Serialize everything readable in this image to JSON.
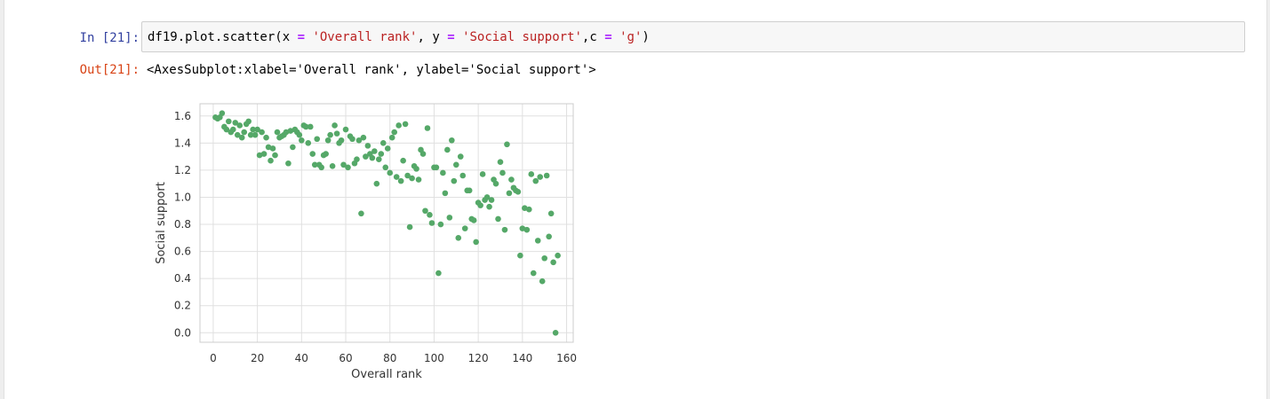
{
  "cell": {
    "in_prompt": "In [21]:",
    "out_prompt": "Out[21]:",
    "code": {
      "part1": "df19.plot.scatter(x ",
      "eq1": "=",
      "part2": " ",
      "str1": "'Overall rank'",
      "part3": ", y ",
      "eq2": "=",
      "part4": " ",
      "str2": "'Social support'",
      "part5": ",c ",
      "eq3": "=",
      "part6": " ",
      "str3": "'g'",
      "part7": ")"
    },
    "output_text": "<AxesSubplot:xlabel='Overall rank', ylabel='Social support'>"
  },
  "colors": {
    "marker": "#55a868",
    "in_prompt": "#303f9f",
    "out_prompt": "#d84315",
    "grid": "#e0e0e0",
    "axis_text": "#333333"
  },
  "chart_data": {
    "type": "scatter",
    "xlabel": "Overall rank",
    "ylabel": "Social support",
    "xlim": [
      -6,
      163
    ],
    "ylim": [
      -0.07,
      1.69
    ],
    "xticks": [
      0,
      20,
      40,
      60,
      80,
      100,
      120,
      140,
      160
    ],
    "yticks": [
      0.0,
      0.2,
      0.4,
      0.6,
      0.8,
      1.0,
      1.2,
      1.4,
      1.6
    ],
    "ytick_labels": [
      "0.0",
      "0.2",
      "0.4",
      "0.6",
      "0.8",
      "1.0",
      "1.2",
      "1.4",
      "1.6"
    ],
    "grid": true,
    "x": [
      1,
      2,
      3,
      4,
      5,
      6,
      7,
      8,
      9,
      10,
      11,
      12,
      13,
      14,
      15,
      16,
      17,
      18,
      19,
      20,
      21,
      22,
      23,
      24,
      25,
      26,
      27,
      28,
      29,
      30,
      31,
      32,
      33,
      34,
      35,
      36,
      37,
      38,
      39,
      40,
      41,
      42,
      43,
      44,
      45,
      46,
      47,
      48,
      49,
      50,
      51,
      52,
      53,
      54,
      55,
      56,
      57,
      58,
      59,
      60,
      61,
      62,
      63,
      64,
      65,
      66,
      67,
      68,
      69,
      70,
      71,
      72,
      73,
      74,
      75,
      76,
      77,
      78,
      79,
      80,
      81,
      82,
      83,
      84,
      85,
      86,
      87,
      88,
      89,
      90,
      91,
      92,
      93,
      94,
      95,
      96,
      97,
      98,
      99,
      100,
      101,
      102,
      103,
      104,
      105,
      106,
      107,
      108,
      109,
      110,
      111,
      112,
      113,
      114,
      115,
      116,
      117,
      118,
      119,
      120,
      121,
      122,
      123,
      124,
      125,
      126,
      127,
      128,
      129,
      130,
      131,
      132,
      133,
      134,
      135,
      136,
      137,
      138,
      139,
      140,
      141,
      142,
      143,
      144,
      145,
      146,
      147,
      148,
      149,
      150,
      151,
      152,
      153,
      154,
      155,
      156
    ],
    "y": [
      1.59,
      1.58,
      1.59,
      1.62,
      1.52,
      1.5,
      1.56,
      1.48,
      1.5,
      1.55,
      1.46,
      1.53,
      1.44,
      1.48,
      1.54,
      1.56,
      1.46,
      1.5,
      1.46,
      1.5,
      1.31,
      1.48,
      1.32,
      1.44,
      1.37,
      1.27,
      1.36,
      1.31,
      1.48,
      1.44,
      1.45,
      1.46,
      1.48,
      1.25,
      1.49,
      1.37,
      1.5,
      1.48,
      1.46,
      1.42,
      1.53,
      1.52,
      1.4,
      1.52,
      1.32,
      1.24,
      1.43,
      1.24,
      1.22,
      1.31,
      1.32,
      1.42,
      1.46,
      1.23,
      1.53,
      1.47,
      1.4,
      1.42,
      1.24,
      1.5,
      1.22,
      1.45,
      1.43,
      1.25,
      1.28,
      1.42,
      0.88,
      1.44,
      1.3,
      1.38,
      1.32,
      1.29,
      1.34,
      1.1,
      1.28,
      1.32,
      1.4,
      1.22,
      1.36,
      1.18,
      1.44,
      1.48,
      1.15,
      1.53,
      1.12,
      1.27,
      1.54,
      1.16,
      0.78,
      1.14,
      1.23,
      1.21,
      1.13,
      1.35,
      1.32,
      0.9,
      1.51,
      0.87,
      0.81,
      1.22,
      1.22,
      0.44,
      0.8,
      1.18,
      1.03,
      1.35,
      0.85,
      1.42,
      1.12,
      1.24,
      0.7,
      1.3,
      1.16,
      0.77,
      1.05,
      1.05,
      0.84,
      0.83,
      0.67,
      0.96,
      0.94,
      1.17,
      0.98,
      1.0,
      0.93,
      0.98,
      1.13,
      1.1,
      0.84,
      1.26,
      1.18,
      0.76,
      1.39,
      1.03,
      1.13,
      1.07,
      1.05,
      1.04,
      0.57,
      0.77,
      0.92,
      0.76,
      0.91,
      1.17,
      0.44,
      1.12,
      0.68,
      1.15,
      0.38,
      0.55,
      1.16,
      0.71,
      0.88,
      0.52,
      0.0,
      0.57
    ]
  }
}
